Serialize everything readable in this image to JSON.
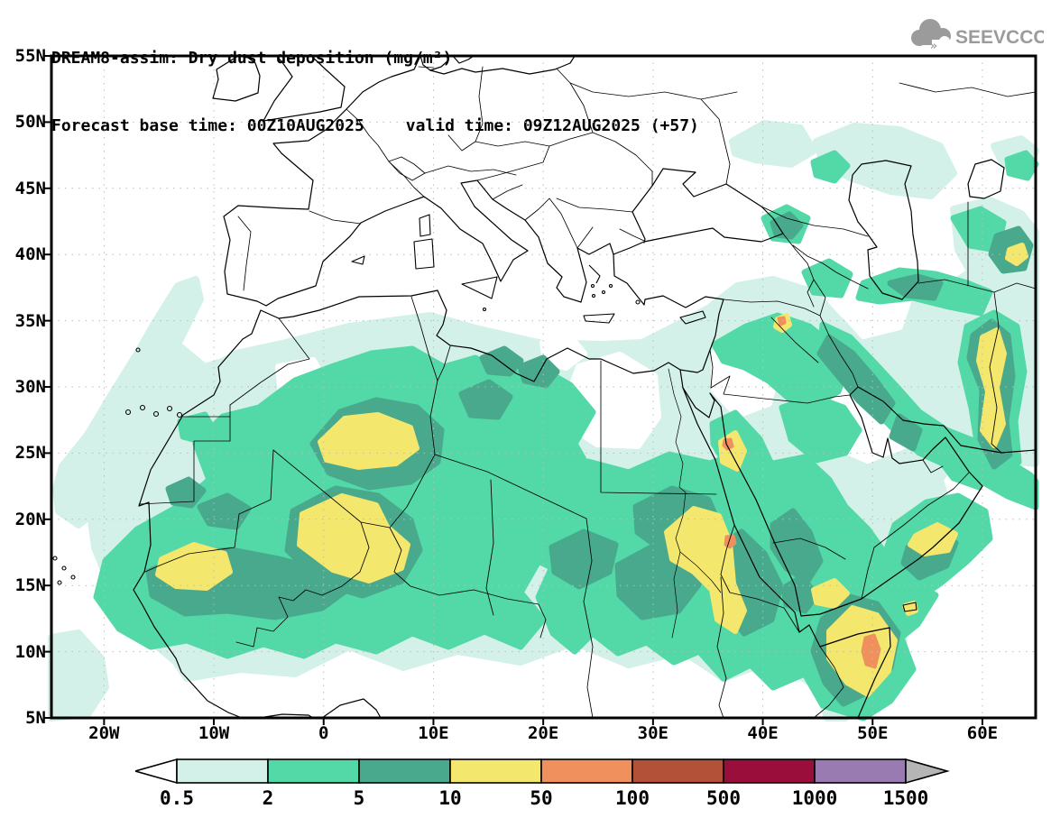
{
  "title": {
    "line1": "DREAM8-assim: Dry dust deposition (mg/m²)",
    "line2_left": "Forecast base time: 00Z10AUG2025",
    "line2_right": "valid time: 09Z12AUG2025 (+57)",
    "model": "DREAM8-assim",
    "variable": "Dry dust deposition",
    "units": "mg/m²",
    "forecast_base_time": "00Z10AUG2025",
    "valid_time": "09Z12AUG2025",
    "forecast_offset": "+57"
  },
  "logo": {
    "text": "SEEVCCC",
    "color": "#9b9b9b"
  },
  "axes": {
    "lat": [
      "55N",
      "50N",
      "45N",
      "40N",
      "35N",
      "30N",
      "25N",
      "20N",
      "15N",
      "10N",
      "5N"
    ],
    "lon": [
      "20W",
      "10W",
      "0",
      "10E",
      "20E",
      "30E",
      "40E",
      "50E",
      "60E"
    ]
  },
  "legend": {
    "values": [
      "0.5",
      "2",
      "5",
      "10",
      "50",
      "100",
      "500",
      "1000",
      "1500"
    ],
    "cell_colors": [
      "#d3f1e9",
      "#53d8a8",
      "#49a98c",
      "#f3e76e",
      "#f0905d",
      "#b25038",
      "#9a0e3c",
      "#9a7bb1"
    ],
    "below_color": "#ffffff",
    "above_color": "#b5b5b5",
    "levels": [
      {
        "range": "< 0.5",
        "color": "#ffffff"
      },
      {
        "range": "0.5–2",
        "color": "#d3f1e9"
      },
      {
        "range": "2–5",
        "color": "#53d8a8"
      },
      {
        "range": "5–10",
        "color": "#49a98c"
      },
      {
        "range": "10–50",
        "color": "#f3e76e"
      },
      {
        "range": "50–100",
        "color": "#f0905d"
      },
      {
        "range": "100–500",
        "color": "#b25038"
      },
      {
        "range": "500–1000",
        "color": "#9a0e3c"
      },
      {
        "range": "1000–1500",
        "color": "#9a7bb1"
      },
      {
        "range": "> 1500",
        "color": "#b5b5b5"
      }
    ]
  },
  "map": {
    "lon_range": [
      "25W",
      "65E"
    ],
    "lat_range": [
      "5N",
      "55N"
    ],
    "grid_color": "#bcbcbc",
    "coast_color": "#000000"
  }
}
